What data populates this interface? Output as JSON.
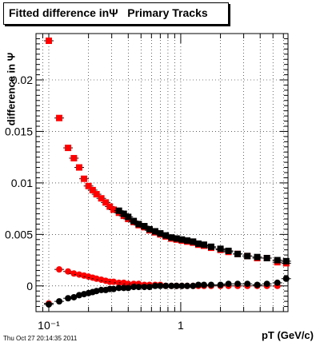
{
  "chart_data": {
    "type": "scatter",
    "title": "Fitted difference inΨ   Primary Tracks",
    "xlabel": "pT (GeV/c)",
    "ylabel": "difference in Ψ",
    "xscale": "log",
    "xlim": [
      0.08,
      6.5
    ],
    "ylim": [
      -0.0025,
      0.0245
    ],
    "grid": true,
    "xticks": [
      {
        "v": 0.1,
        "label": "10⁻¹"
      },
      {
        "v": 1,
        "label": "1"
      }
    ],
    "yticks": [
      {
        "v": 0,
        "label": "0"
      },
      {
        "v": 0.005,
        "label": "0.005"
      },
      {
        "v": 0.01,
        "label": "0.01"
      },
      {
        "v": 0.015,
        "label": "0.015"
      },
      {
        "v": 0.02,
        "label": "0.02"
      }
    ],
    "series": [
      {
        "marker": "square",
        "color": "#ff0000",
        "x": [
          0.1,
          0.12,
          0.14,
          0.155,
          0.17,
          0.185,
          0.2,
          0.215,
          0.23,
          0.25,
          0.27,
          0.29,
          0.31,
          0.34,
          0.37,
          0.4,
          0.44,
          0.48,
          0.53,
          0.58,
          0.64,
          0.7,
          0.77,
          0.85,
          0.93,
          1.02,
          1.12,
          1.24,
          1.36,
          1.5,
          1.7,
          2.0,
          2.3,
          2.7,
          3.2,
          3.8,
          4.5,
          5.4,
          6.3
        ],
        "y": [
          0.0238,
          0.0163,
          0.0134,
          0.0124,
          0.0115,
          0.0104,
          0.0097,
          0.0093,
          0.0089,
          0.0085,
          0.0081,
          0.0077,
          0.0074,
          0.0071,
          0.0068,
          0.0065,
          0.0062,
          0.0059,
          0.0057,
          0.0054,
          0.0052,
          0.005,
          0.0048,
          0.0046,
          0.0045,
          0.0044,
          0.0043,
          0.0042,
          0.004,
          0.0039,
          0.0037,
          0.0035,
          0.0033,
          0.0031,
          0.0029,
          0.0027,
          0.0027,
          0.0023,
          0.0022
        ]
      },
      {
        "marker": "square",
        "color": "#000000",
        "x": [
          0.34,
          0.37,
          0.4,
          0.44,
          0.48,
          0.53,
          0.58,
          0.64,
          0.7,
          0.77,
          0.85,
          0.93,
          1.02,
          1.12,
          1.24,
          1.36,
          1.5,
          1.7,
          2.0,
          2.3,
          2.7,
          3.2,
          3.8,
          4.5,
          5.4,
          6.3
        ],
        "y": [
          0.0073,
          0.007,
          0.0067,
          0.0063,
          0.006,
          0.0058,
          0.0055,
          0.0053,
          0.0051,
          0.0049,
          0.0047,
          0.0046,
          0.0045,
          0.0044,
          0.0043,
          0.0041,
          0.004,
          0.0038,
          0.0036,
          0.0034,
          0.0031,
          0.0029,
          0.0028,
          0.0027,
          0.0025,
          0.0024
        ]
      },
      {
        "marker": "circle",
        "color": "#ff0000",
        "x": [
          0.1,
          0.12,
          0.14,
          0.155,
          0.17,
          0.185,
          0.2,
          0.215,
          0.23,
          0.25,
          0.27,
          0.29,
          0.31,
          0.34,
          0.37,
          0.4,
          0.44,
          0.48,
          0.53,
          0.58,
          0.64,
          0.7,
          0.77,
          0.85,
          0.93,
          1.02,
          1.12,
          1.24,
          1.36,
          1.5,
          1.7,
          2.0,
          2.3,
          2.7,
          3.2,
          3.8,
          4.5,
          5.4
        ],
        "y": [
          -0.0017,
          0.0016,
          0.0014,
          0.0012,
          0.0011,
          0.001,
          0.0009,
          0.0008,
          0.0007,
          0.0006,
          0.0005,
          0.0004,
          0.0004,
          0.0003,
          0.0003,
          0.0002,
          0.0002,
          0.0002,
          0.0001,
          0.0001,
          0.0001,
          0.0001,
          0.0,
          0.0,
          0.0,
          0.0,
          0.0,
          0.0,
          0.0,
          0.0,
          0.0,
          0.0,
          0.0,
          0.0,
          0.0,
          0.0,
          0.0,
          0.0
        ]
      },
      {
        "marker": "circle",
        "color": "#000000",
        "x": [
          0.1,
          0.12,
          0.14,
          0.155,
          0.17,
          0.185,
          0.2,
          0.215,
          0.23,
          0.25,
          0.27,
          0.29,
          0.31,
          0.34,
          0.37,
          0.4,
          0.44,
          0.48,
          0.53,
          0.58,
          0.64,
          0.7,
          0.77,
          0.85,
          0.93,
          1.02,
          1.12,
          1.24,
          1.36,
          1.5,
          1.7,
          2.0,
          2.3,
          2.7,
          3.2,
          3.8,
          4.5,
          5.4,
          6.3
        ],
        "y": [
          -0.0018,
          -0.0015,
          -0.0012,
          -0.0011,
          -0.0009,
          -0.0008,
          -0.0007,
          -0.0006,
          -0.0005,
          -0.0004,
          -0.0004,
          -0.0003,
          -0.0003,
          -0.0002,
          -0.0002,
          -0.0002,
          -0.0001,
          -0.0001,
          -0.0001,
          -0.0001,
          0.0,
          0.0,
          0.0,
          0.0,
          0.0,
          0.0,
          0.0,
          0.0,
          0.0001,
          0.0001,
          0.0001,
          0.0001,
          0.0002,
          0.0002,
          0.0002,
          0.0001,
          0.0002,
          0.0003,
          0.0007
        ]
      }
    ]
  },
  "timestamp": "Thu Oct 27 20:14:35 2011"
}
